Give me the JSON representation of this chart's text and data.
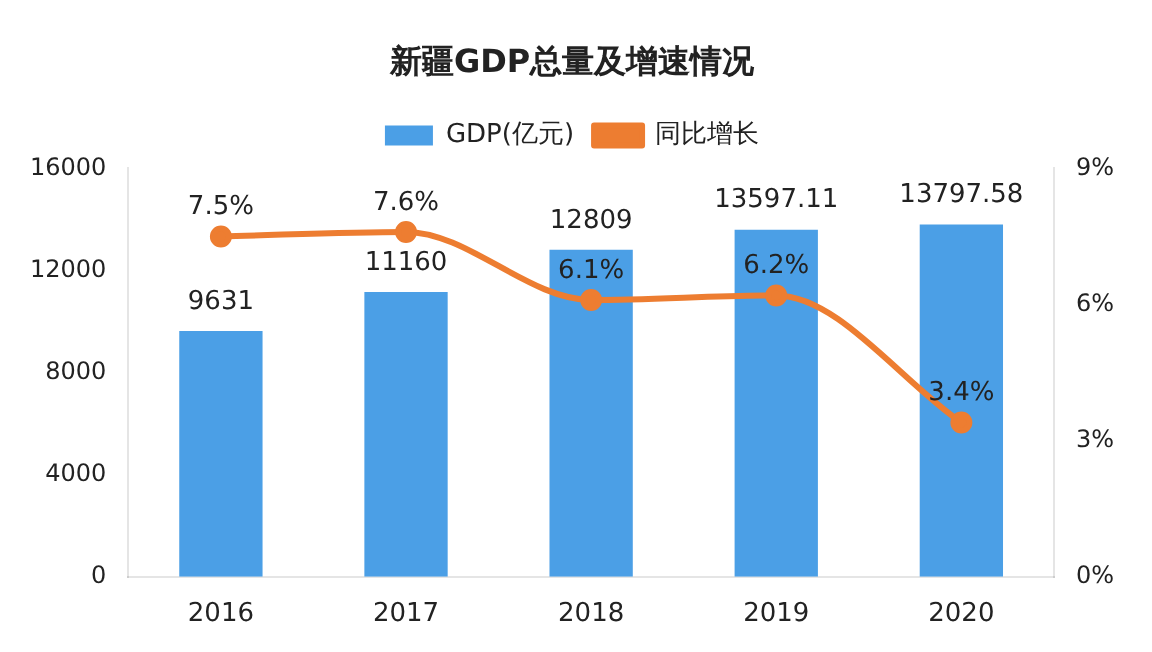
{
  "chart_data": {
    "type": "bar",
    "title": "新疆GDP总量及增速情况",
    "categories": [
      "2016",
      "2017",
      "2018",
      "2019",
      "2020"
    ],
    "series": [
      {
        "name": "GDP(亿元)",
        "color": "#4b9fe6",
        "values": [
          9631,
          11160,
          12809,
          13597.11,
          13797.58
        ],
        "value_labels": [
          "9631",
          "11160",
          "12809",
          "13597.11",
          "13797.58"
        ]
      },
      {
        "name": "同比增长",
        "type": "line",
        "axis": "y2",
        "color": "#ed7d31",
        "marker": "circle",
        "values": [
          7.5,
          7.6,
          6.1,
          6.2,
          3.4
        ],
        "value_labels": [
          "7.5%",
          "7.6%",
          "6.1%",
          "6.2%",
          "3.4%"
        ]
      }
    ],
    "ylim": [
      0,
      16000
    ],
    "yticks": [
      0,
      4000,
      8000,
      12000,
      16000
    ],
    "y2lim": [
      0,
      9
    ],
    "y2ticks": [
      {
        "value": 0,
        "label": "0%"
      },
      {
        "value": 3,
        "label": "3%"
      },
      {
        "value": 6,
        "label": "6%"
      },
      {
        "value": 9,
        "label": "9%"
      }
    ],
    "legend": "top",
    "grid": false
  }
}
